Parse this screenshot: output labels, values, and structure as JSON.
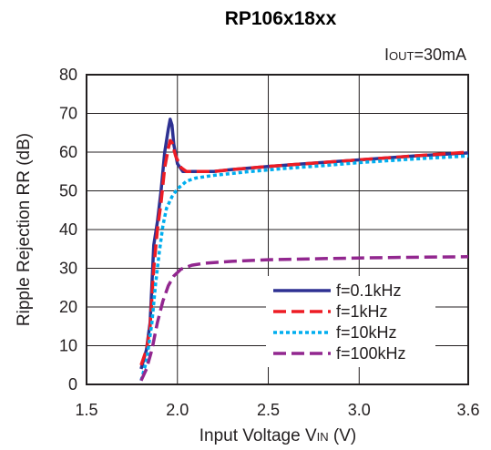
{
  "chart_data": {
    "type": "line",
    "title": "RP106x18xx",
    "condition": {
      "prefix": "I",
      "subscript": "OUT",
      "suffix": "=30mA"
    },
    "xlabel": {
      "prefix": "Input Voltage V",
      "subscript": "IN",
      "suffix": " (V)"
    },
    "ylabel": "Ripple Rejection RR (dB)",
    "xlim": [
      1.5,
      3.6
    ],
    "ylim": [
      0,
      80
    ],
    "x_ticks": [
      "1.5",
      "2.0",
      "2.5",
      "3.0",
      "3.6"
    ],
    "x_tick_values": [
      1.5,
      2.0,
      2.5,
      3.0,
      3.6
    ],
    "y_ticks": [
      "0",
      "10",
      "20",
      "30",
      "40",
      "50",
      "60",
      "70",
      "80"
    ],
    "y_tick_values": [
      0,
      10,
      20,
      30,
      40,
      50,
      60,
      70,
      80
    ],
    "grid": true,
    "legend_position": "lower-right",
    "series": [
      {
        "name": "f=0.1kHz",
        "color": "#2e3192",
        "style": "solid",
        "points": [
          [
            1.8,
            4
          ],
          [
            1.83,
            9
          ],
          [
            1.85,
            16
          ],
          [
            1.87,
            36
          ],
          [
            1.89,
            42
          ],
          [
            1.91,
            50
          ],
          [
            1.93,
            60
          ],
          [
            1.95,
            66
          ],
          [
            1.96,
            68.5
          ],
          [
            1.97,
            67
          ],
          [
            1.98,
            62
          ],
          [
            2.0,
            57
          ],
          [
            2.03,
            55
          ],
          [
            2.1,
            55
          ],
          [
            2.2,
            55
          ],
          [
            2.3,
            55.5
          ],
          [
            2.5,
            56.3
          ],
          [
            2.7,
            57
          ],
          [
            3.0,
            58
          ],
          [
            3.3,
            59
          ],
          [
            3.6,
            59.8
          ]
        ]
      },
      {
        "name": "f=1kHz",
        "color": "#ed1c24",
        "style": "dashed",
        "points": [
          [
            1.8,
            5
          ],
          [
            1.83,
            9
          ],
          [
            1.85,
            15
          ],
          [
            1.87,
            30
          ],
          [
            1.89,
            40
          ],
          [
            1.91,
            47
          ],
          [
            1.93,
            56
          ],
          [
            1.95,
            61
          ],
          [
            1.96,
            63
          ],
          [
            1.97,
            62.5
          ],
          [
            1.99,
            59
          ],
          [
            2.02,
            56
          ],
          [
            2.05,
            55
          ],
          [
            2.1,
            55
          ],
          [
            2.2,
            55
          ],
          [
            2.3,
            55.5
          ],
          [
            2.5,
            56.3
          ],
          [
            2.7,
            57
          ],
          [
            3.0,
            58
          ],
          [
            3.3,
            59
          ],
          [
            3.6,
            60
          ]
        ]
      },
      {
        "name": "f=10kHz",
        "color": "#00aeef",
        "style": "dotted",
        "points": [
          [
            1.8,
            1
          ],
          [
            1.83,
            6
          ],
          [
            1.86,
            16
          ],
          [
            1.88,
            26
          ],
          [
            1.9,
            34
          ],
          [
            1.92,
            41
          ],
          [
            1.94,
            45.5
          ],
          [
            1.97,
            48.5
          ],
          [
            2.0,
            50.5
          ],
          [
            2.05,
            52.5
          ],
          [
            2.1,
            53.3
          ],
          [
            2.2,
            54
          ],
          [
            2.4,
            55
          ],
          [
            2.6,
            55.8
          ],
          [
            2.8,
            56.5
          ],
          [
            3.0,
            57.3
          ],
          [
            3.3,
            58.2
          ],
          [
            3.6,
            59
          ]
        ]
      },
      {
        "name": "f=100kHz",
        "color": "#92278f",
        "style": "dashed",
        "points": [
          [
            1.8,
            1
          ],
          [
            1.83,
            4
          ],
          [
            1.86,
            9
          ],
          [
            1.89,
            16
          ],
          [
            1.92,
            21.5
          ],
          [
            1.95,
            25.5
          ],
          [
            1.98,
            28
          ],
          [
            2.02,
            29.8
          ],
          [
            2.08,
            30.8
          ],
          [
            2.15,
            31.3
          ],
          [
            2.3,
            31.8
          ],
          [
            2.5,
            32.2
          ],
          [
            2.8,
            32.5
          ],
          [
            3.2,
            32.8
          ],
          [
            3.6,
            33
          ]
        ]
      }
    ]
  }
}
